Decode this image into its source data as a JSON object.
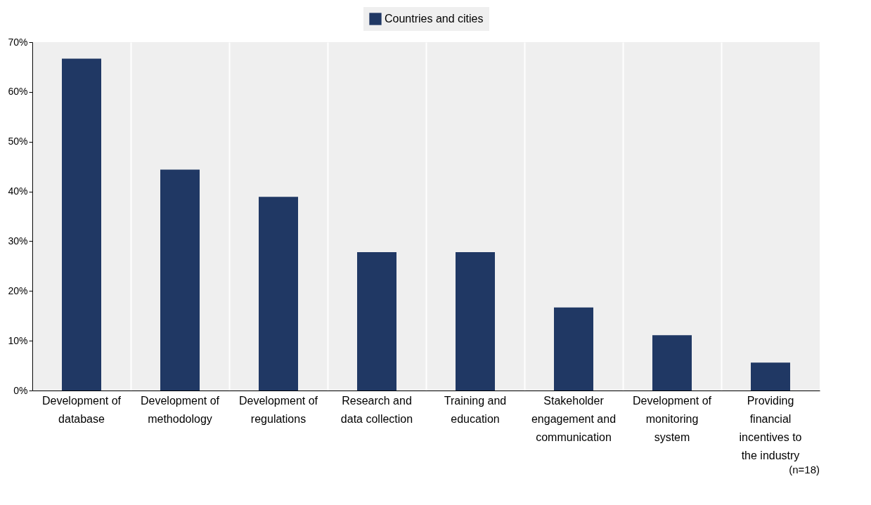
{
  "chart_data": {
    "type": "bar",
    "categories": [
      "Development of database",
      "Development of methodology",
      "Development of regulations",
      "Research and data collection",
      "Training and education",
      "Stakeholder engagement and communication",
      "Development of monitoring system",
      "Providing financial incentives to the industry"
    ],
    "series": [
      {
        "name": "Countries and cities",
        "color": "#203864",
        "values": [
          66.7,
          44.4,
          38.9,
          27.8,
          27.8,
          16.7,
          11.1,
          5.6
        ]
      }
    ],
    "ylim": [
      0,
      70
    ],
    "yticks": [
      {
        "value": 0,
        "label": "0%"
      },
      {
        "value": 10,
        "label": "10%"
      },
      {
        "value": 20,
        "label": "20%"
      },
      {
        "value": 30,
        "label": "30%"
      },
      {
        "value": 40,
        "label": "40%"
      },
      {
        "value": 50,
        "label": "50%"
      },
      {
        "value": 60,
        "label": "60%"
      },
      {
        "value": 70,
        "label": "70%"
      }
    ],
    "grid": "x",
    "legend": "top",
    "annotations": [
      "(n=18)"
    ]
  }
}
